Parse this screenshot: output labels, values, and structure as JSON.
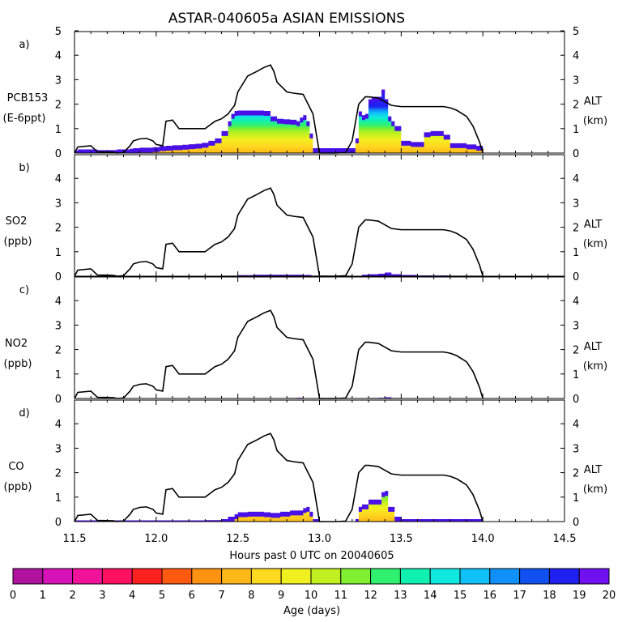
{
  "chart_data": {
    "type": "area",
    "title": "ASTAR-040605a ASIAN EMISSIONS",
    "xlabel": "Hours past 0 UTC on 20040605",
    "colorbar_label": "Age (days)",
    "x_ticks": [
      "11.5",
      "12.0",
      "12.5",
      "13.0",
      "13.5",
      "14.0",
      "14.5"
    ],
    "xlim": [
      11.5,
      14.5
    ],
    "y_ticks": [
      "0",
      "1",
      "2",
      "3",
      "4",
      "5"
    ],
    "ylim": [
      0,
      5
    ],
    "colorbar_ticks": [
      "0",
      "1",
      "2",
      "3",
      "4",
      "5",
      "6",
      "7",
      "8",
      "9",
      "10",
      "11",
      "12",
      "13",
      "14",
      "15",
      "16",
      "17",
      "18",
      "19",
      "20"
    ],
    "colorbar_colors": [
      "#7a0a78",
      "#b0119f",
      "#d612b8",
      "#f0129a",
      "#ff1060",
      "#ff2020",
      "#ff5a10",
      "#ff9210",
      "#ffb818",
      "#ffd820",
      "#f0f020",
      "#c0f020",
      "#80f030",
      "#30f070",
      "#10f0b0",
      "#10e8e0",
      "#10c0f8",
      "#1090f8",
      "#1050f0",
      "#2020f0",
      "#7010f0"
    ],
    "altitude": {
      "name": "ALT",
      "units": "(km)",
      "x": [
        11.5,
        11.52,
        11.6,
        11.64,
        11.74,
        11.76,
        11.8,
        11.84,
        11.86,
        11.9,
        11.94,
        11.98,
        12.0,
        12.04,
        12.06,
        12.1,
        12.14,
        12.2,
        12.3,
        12.36,
        12.4,
        12.44,
        12.48,
        12.5,
        12.56,
        12.62,
        12.66,
        12.7,
        12.72,
        12.74,
        12.8,
        12.84,
        12.9,
        12.96,
        13.0,
        13.1,
        13.16,
        13.2,
        13.24,
        13.28,
        13.3,
        13.36,
        13.4,
        13.44,
        13.5,
        13.6,
        13.66,
        13.7,
        13.76,
        13.8,
        13.84,
        13.9,
        13.94,
        13.98,
        14.0
      ],
      "y": [
        0.0,
        0.25,
        0.3,
        0.05,
        0.03,
        0.0,
        0.02,
        0.3,
        0.5,
        0.58,
        0.6,
        0.5,
        0.35,
        0.3,
        1.3,
        1.35,
        1.0,
        1.0,
        1.0,
        1.3,
        1.4,
        1.6,
        1.95,
        2.5,
        3.15,
        3.35,
        3.5,
        3.6,
        3.35,
        2.9,
        2.5,
        2.45,
        2.4,
        1.6,
        0.0,
        0.0,
        0.02,
        0.5,
        2.0,
        2.3,
        2.3,
        2.25,
        2.1,
        1.95,
        1.9,
        1.9,
        1.9,
        1.9,
        1.9,
        1.85,
        1.75,
        1.5,
        1.1,
        0.45,
        0.0
      ]
    },
    "panels": [
      {
        "letter": "a)",
        "species": "PCB153",
        "units": "(E-6ppt)",
        "ylim": [
          0,
          5
        ],
        "x": [
          11.5,
          11.52,
          11.64,
          11.76,
          11.84,
          11.86,
          11.9,
          11.94,
          11.98,
          12.02,
          12.06,
          12.1,
          12.16,
          12.2,
          12.24,
          12.28,
          12.32,
          12.36,
          12.4,
          12.44,
          12.46,
          12.48,
          12.5,
          12.54,
          12.58,
          12.62,
          12.66,
          12.7,
          12.74,
          12.78,
          12.82,
          12.86,
          12.88,
          12.9,
          12.92,
          12.94,
          12.96,
          12.98,
          13.0,
          13.1,
          13.16,
          13.2,
          13.22,
          13.24,
          13.26,
          13.28,
          13.3,
          13.32,
          13.34,
          13.36,
          13.38,
          13.4,
          13.42,
          13.44,
          13.46,
          13.5,
          13.56,
          13.6,
          13.64,
          13.68,
          13.72,
          13.76,
          13.8,
          13.84,
          13.9,
          13.96,
          14.0
        ],
        "total": [
          0.1,
          0.15,
          0.12,
          0.15,
          0.18,
          0.2,
          0.22,
          0.22,
          0.24,
          0.28,
          0.3,
          0.32,
          0.34,
          0.36,
          0.38,
          0.42,
          0.5,
          0.6,
          0.9,
          1.3,
          1.6,
          1.72,
          1.74,
          1.74,
          1.74,
          1.74,
          1.72,
          1.5,
          1.4,
          1.38,
          1.36,
          1.3,
          1.45,
          1.55,
          1.3,
          0.8,
          0.2,
          0.2,
          0.2,
          0.2,
          0.2,
          0.2,
          0.6,
          1.7,
          1.55,
          1.6,
          2.2,
          2.3,
          2.3,
          2.3,
          2.6,
          2.2,
          1.5,
          1.3,
          1.1,
          0.5,
          0.45,
          0.45,
          0.85,
          0.9,
          0.9,
          0.75,
          0.4,
          0.4,
          0.35,
          0.3,
          0.0
        ],
        "young": [
          0.0,
          0.0,
          0.0,
          0.0,
          0.0,
          0.0,
          0.0,
          0.0,
          0.0,
          0.0,
          0.0,
          0.0,
          0.0,
          0.02,
          0.03,
          0.05,
          0.1,
          0.15,
          0.3,
          0.6,
          0.85,
          0.95,
          1.0,
          1.0,
          1.0,
          1.0,
          0.95,
          0.85,
          0.75,
          0.75,
          0.75,
          0.7,
          0.75,
          0.8,
          0.6,
          0.3,
          0.0,
          0.0,
          0.0,
          0.0,
          0.0,
          0.0,
          0.2,
          0.9,
          0.8,
          0.85,
          1.2,
          1.25,
          1.25,
          1.25,
          1.3,
          1.1,
          0.7,
          0.55,
          0.4,
          0.15,
          0.12,
          0.12,
          0.2,
          0.22,
          0.22,
          0.18,
          0.08,
          0.08,
          0.05,
          0.03,
          0.0
        ]
      },
      {
        "letter": "b)",
        "species": "SO2",
        "units": "(ppb)",
        "ylim": [
          0,
          5
        ],
        "x": [
          11.5,
          12.4,
          12.5,
          12.6,
          12.7,
          12.8,
          12.9,
          12.95,
          13.2,
          13.26,
          13.3,
          13.36,
          13.4,
          13.44,
          13.5,
          13.6,
          13.7,
          13.8,
          14.0
        ],
        "total": [
          0.0,
          0.02,
          0.04,
          0.06,
          0.06,
          0.06,
          0.05,
          0.02,
          0.0,
          0.06,
          0.08,
          0.1,
          0.15,
          0.08,
          0.05,
          0.03,
          0.03,
          0.02,
          0.0
        ],
        "young": [
          0.0,
          0.0,
          0.0,
          0.0,
          0.0,
          0.0,
          0.0,
          0.0,
          0.0,
          0.0,
          0.0,
          0.0,
          0.0,
          0.0,
          0.0,
          0.0,
          0.0,
          0.0,
          0.0
        ]
      },
      {
        "letter": "c)",
        "species": "NO2",
        "units": "(ppb)",
        "ylim": [
          0,
          5
        ],
        "x": [
          11.5,
          12.7,
          12.8,
          12.86,
          12.9,
          13.2,
          13.3,
          13.36,
          13.4,
          13.44,
          13.5,
          14.0
        ],
        "total": [
          0.0,
          0.0,
          0.02,
          0.03,
          0.0,
          0.0,
          0.02,
          0.03,
          0.05,
          0.02,
          0.0,
          0.0
        ],
        "young": [
          0.0,
          0.0,
          0.0,
          0.0,
          0.0,
          0.0,
          0.0,
          0.0,
          0.0,
          0.0,
          0.0,
          0.0
        ]
      },
      {
        "letter": "d)",
        "species": "CO",
        "units": "(ppb)",
        "ylim": [
          0,
          5
        ],
        "x": [
          11.5,
          12.0,
          12.2,
          12.3,
          12.4,
          12.44,
          12.48,
          12.5,
          12.56,
          12.62,
          12.66,
          12.7,
          12.76,
          12.82,
          12.86,
          12.9,
          12.92,
          12.94,
          12.96,
          13.0,
          13.2,
          13.22,
          13.24,
          13.26,
          13.3,
          13.34,
          13.38,
          13.4,
          13.42,
          13.46,
          13.5,
          13.6,
          13.7,
          13.8,
          13.9,
          14.0
        ],
        "total": [
          0.05,
          0.05,
          0.05,
          0.06,
          0.1,
          0.2,
          0.3,
          0.38,
          0.4,
          0.4,
          0.38,
          0.35,
          0.4,
          0.45,
          0.45,
          0.55,
          0.6,
          0.4,
          0.1,
          0.0,
          0.0,
          0.1,
          0.6,
          0.7,
          0.9,
          0.9,
          1.2,
          1.25,
          0.6,
          0.2,
          0.1,
          0.1,
          0.1,
          0.1,
          0.1,
          0.0
        ],
        "young": [
          0.0,
          0.0,
          0.0,
          0.0,
          0.02,
          0.04,
          0.06,
          0.08,
          0.1,
          0.1,
          0.1,
          0.08,
          0.1,
          0.12,
          0.12,
          0.14,
          0.15,
          0.1,
          0.0,
          0.0,
          0.0,
          0.0,
          0.1,
          0.15,
          0.2,
          0.2,
          0.25,
          0.25,
          0.12,
          0.03,
          0.0,
          0.0,
          0.0,
          0.0,
          0.0,
          0.0
        ]
      }
    ]
  }
}
